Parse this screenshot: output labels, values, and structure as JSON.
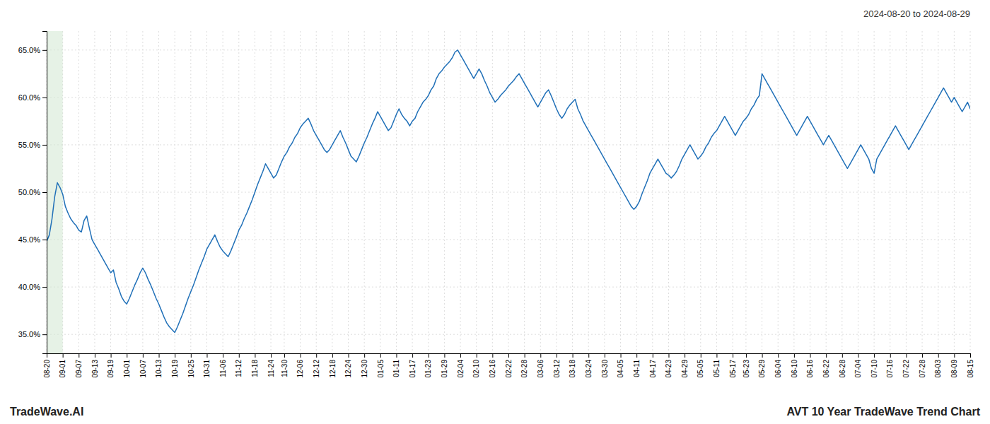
{
  "chart_data": {
    "type": "line",
    "title": "AVT 10 Year TradeWave Trend Chart",
    "subtitle": "2024-08-20 to 2024-08-29",
    "annotations": [
      "TradeWave.AI"
    ],
    "color": "#2070b8",
    "grid": true,
    "ylim": [
      33.0,
      67.0
    ],
    "yticks": [
      {
        "value": 35.0,
        "label": "35.0%"
      },
      {
        "value": 40.0,
        "label": "40.0%"
      },
      {
        "value": 45.0,
        "label": "45.0%"
      },
      {
        "value": 50.0,
        "label": "50.0%"
      },
      {
        "value": 55.0,
        "label": "55.0%"
      },
      {
        "value": 60.0,
        "label": "60.0%"
      },
      {
        "value": 65.0,
        "label": "65.0%"
      }
    ],
    "highlight": {
      "from": "08-20",
      "to": "09-01",
      "color": "#d6ead6"
    },
    "categories": [
      "08-20",
      null,
      null,
      null,
      null,
      null,
      "09-01",
      null,
      null,
      null,
      null,
      null,
      "09-07",
      null,
      null,
      null,
      null,
      null,
      "09-13",
      null,
      null,
      null,
      null,
      null,
      "09-19",
      null,
      null,
      null,
      null,
      null,
      "10-01",
      null,
      null,
      null,
      null,
      null,
      "10-07",
      null,
      null,
      null,
      null,
      null,
      "10-13",
      null,
      null,
      null,
      null,
      null,
      "10-19",
      null,
      null,
      null,
      null,
      null,
      "10-25",
      null,
      null,
      null,
      null,
      null,
      "10-31",
      null,
      null,
      null,
      null,
      null,
      "11-06",
      null,
      null,
      null,
      null,
      null,
      "11-12",
      null,
      null,
      null,
      null,
      null,
      "11-18",
      null,
      null,
      null,
      null,
      null,
      "11-24",
      null,
      null,
      null,
      null,
      "11-30",
      null,
      null,
      null,
      null,
      null,
      "12-06",
      null,
      null,
      null,
      null,
      null,
      "12-12",
      null,
      null,
      null,
      null,
      null,
      "12-18",
      null,
      null,
      null,
      null,
      null,
      "12-24",
      null,
      null,
      null,
      null,
      null,
      "12-30",
      null,
      null,
      null,
      null,
      null,
      "01-05",
      null,
      null,
      null,
      null,
      null,
      "01-11",
      null,
      null,
      null,
      null,
      null,
      "01-17",
      null,
      null,
      null,
      null,
      null,
      "01-23",
      null,
      null,
      null,
      null,
      null,
      "01-29",
      null,
      null,
      null,
      null,
      null,
      "02-04",
      null,
      null,
      null,
      null,
      null,
      "02-10",
      null,
      null,
      null,
      null,
      null,
      "02-16",
      null,
      null,
      null,
      null,
      null,
      "02-22",
      null,
      null,
      null,
      null,
      null,
      "02-28",
      null,
      null,
      null,
      null,
      null,
      "03-06",
      null,
      null,
      null,
      null,
      null,
      "03-12",
      null,
      null,
      null,
      null,
      null,
      "03-18",
      null,
      null,
      null,
      null,
      null,
      "03-24",
      null,
      null,
      null,
      null,
      null,
      "03-30",
      null,
      null,
      null,
      null,
      null,
      "04-05",
      null,
      null,
      null,
      null,
      null,
      "04-11",
      null,
      null,
      null,
      null,
      null,
      "04-17",
      null,
      null,
      null,
      null,
      null,
      "04-23",
      null,
      null,
      null,
      null,
      null,
      "04-29",
      null,
      null,
      null,
      null,
      null,
      "05-05",
      null,
      null,
      null,
      null,
      null,
      "05-11",
      null,
      null,
      null,
      null,
      null,
      "05-17",
      null,
      null,
      null,
      null,
      "05-23",
      null,
      null,
      null,
      null,
      null,
      "05-29",
      null,
      null,
      null,
      null,
      null,
      "06-04",
      null,
      null,
      null,
      null,
      null,
      "06-10",
      null,
      null,
      null,
      null,
      null,
      "06-16",
      null,
      null,
      null,
      null,
      null,
      "06-22",
      null,
      null,
      null,
      null,
      null,
      "06-28",
      null,
      null,
      null,
      null,
      null,
      "07-04",
      null,
      null,
      null,
      null,
      null,
      "07-10",
      null,
      null,
      null,
      null,
      null,
      "07-16",
      null,
      null,
      null,
      null,
      null,
      "07-22",
      null,
      null,
      null,
      null,
      null,
      "07-28",
      null,
      null,
      null,
      null,
      null,
      "08-03",
      null,
      null,
      null,
      null,
      null,
      "08-09",
      null,
      null,
      null,
      null,
      null,
      "08-15"
    ],
    "values": [
      44.8,
      45.5,
      47.2,
      49.5,
      51.0,
      50.5,
      49.8,
      48.5,
      47.8,
      47.2,
      46.8,
      46.5,
      46.0,
      45.8,
      47.0,
      47.5,
      46.2,
      45.0,
      44.5,
      44.0,
      43.5,
      43.0,
      42.5,
      42.0,
      41.5,
      41.8,
      40.5,
      39.8,
      39.0,
      38.5,
      38.2,
      38.8,
      39.5,
      40.2,
      40.8,
      41.5,
      42.0,
      41.5,
      40.8,
      40.2,
      39.5,
      38.8,
      38.2,
      37.5,
      36.8,
      36.2,
      35.8,
      35.5,
      35.2,
      35.8,
      36.5,
      37.2,
      38.0,
      38.8,
      39.5,
      40.2,
      41.0,
      41.8,
      42.5,
      43.2,
      44.0,
      44.5,
      45.0,
      45.5,
      44.8,
      44.2,
      43.8,
      43.5,
      43.2,
      43.8,
      44.5,
      45.2,
      46.0,
      46.5,
      47.2,
      47.8,
      48.5,
      49.2,
      50.0,
      50.8,
      51.5,
      52.2,
      53.0,
      52.5,
      52.0,
      51.5,
      51.8,
      52.5,
      53.2,
      53.8,
      54.2,
      54.8,
      55.2,
      55.8,
      56.2,
      56.8,
      57.2,
      57.5,
      57.8,
      57.2,
      56.5,
      56.0,
      55.5,
      55.0,
      54.5,
      54.2,
      54.5,
      55.0,
      55.5,
      56.0,
      56.5,
      55.8,
      55.2,
      54.5,
      53.8,
      53.5,
      53.2,
      53.8,
      54.5,
      55.2,
      55.8,
      56.5,
      57.2,
      57.8,
      58.5,
      58.0,
      57.5,
      57.0,
      56.5,
      56.8,
      57.5,
      58.2,
      58.8,
      58.2,
      57.8,
      57.5,
      57.0,
      57.5,
      57.8,
      58.5,
      59.0,
      59.5,
      59.8,
      60.2,
      60.8,
      61.2,
      62.0,
      62.5,
      62.8,
      63.2,
      63.5,
      63.8,
      64.2,
      64.8,
      65.0,
      64.5,
      64.0,
      63.5,
      63.0,
      62.5,
      62.0,
      62.5,
      63.0,
      62.5,
      61.8,
      61.2,
      60.5,
      60.0,
      59.5,
      59.8,
      60.2,
      60.5,
      60.8,
      61.2,
      61.5,
      61.8,
      62.2,
      62.5,
      62.0,
      61.5,
      61.0,
      60.5,
      60.0,
      59.5,
      59.0,
      59.5,
      60.0,
      60.5,
      60.8,
      60.2,
      59.5,
      58.8,
      58.2,
      57.8,
      58.2,
      58.8,
      59.2,
      59.5,
      59.8,
      58.8,
      58.2,
      57.5,
      57.0,
      56.5,
      56.0,
      55.5,
      55.0,
      54.5,
      54.0,
      53.5,
      53.0,
      52.5,
      52.0,
      51.5,
      51.0,
      50.5,
      50.0,
      49.5,
      49.0,
      48.5,
      48.2,
      48.5,
      49.0,
      49.8,
      50.5,
      51.2,
      52.0,
      52.5,
      53.0,
      53.5,
      53.0,
      52.5,
      52.0,
      51.8,
      51.5,
      51.8,
      52.2,
      52.8,
      53.5,
      54.0,
      54.5,
      55.0,
      54.5,
      54.0,
      53.5,
      53.8,
      54.2,
      54.8,
      55.2,
      55.8,
      56.2,
      56.5,
      57.0,
      57.5,
      58.0,
      57.5,
      57.0,
      56.5,
      56.0,
      56.5,
      57.0,
      57.5,
      57.8,
      58.2,
      58.8,
      59.2,
      59.8,
      60.2,
      62.5,
      62.0,
      61.5,
      61.0,
      60.5,
      60.0,
      59.5,
      59.0,
      58.5,
      58.0,
      57.5,
      57.0,
      56.5,
      56.0,
      56.5,
      57.0,
      57.5,
      58.0,
      57.5,
      57.0,
      56.5,
      56.0,
      55.5,
      55.0,
      55.5,
      56.0,
      55.5,
      55.0,
      54.5,
      54.0,
      53.5,
      53.0,
      52.5,
      53.0,
      53.5,
      54.0,
      54.5,
      55.0,
      54.5,
      54.0,
      53.5,
      52.5,
      52.0,
      53.5,
      54.0,
      54.5,
      55.0,
      55.5,
      56.0,
      56.5,
      57.0,
      56.5,
      56.0,
      55.5,
      55.0,
      54.5,
      55.0,
      55.5,
      56.0,
      56.5,
      57.0,
      57.5,
      58.0,
      58.5,
      59.0,
      59.5,
      60.0,
      60.5,
      61.0,
      60.5,
      60.0,
      59.5,
      60.0,
      59.5,
      59.0,
      58.5,
      59.0,
      59.5,
      58.8
    ]
  }
}
